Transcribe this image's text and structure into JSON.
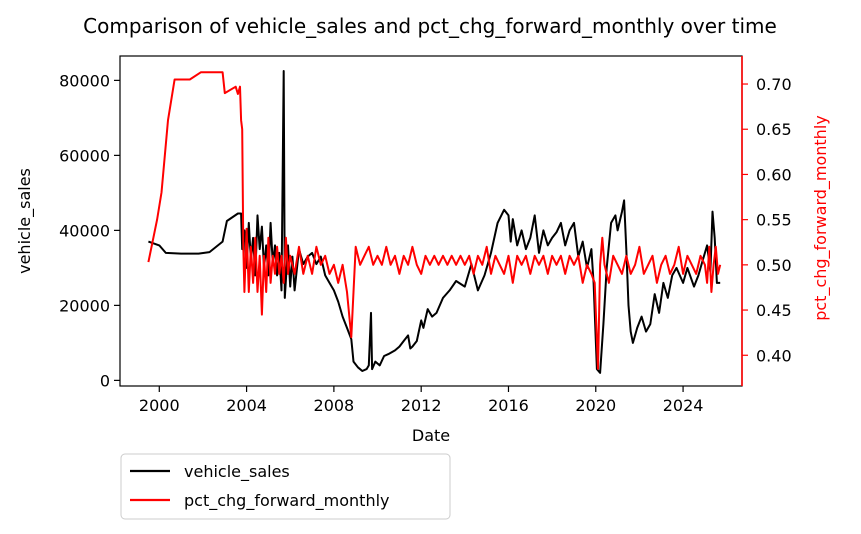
{
  "chart_data": {
    "type": "line",
    "title": "Comparison of vehicle_sales and pct_chg_forward_monthly over time",
    "xlabel": "Date",
    "ylabel_left": "vehicle_sales",
    "ylabel_right": "pct_chg_forward_monthly",
    "colors": {
      "left": "#000000",
      "right": "#ff0000"
    },
    "x_ticks": [
      "2000",
      "2004",
      "2008",
      "2012",
      "2016",
      "2020",
      "2024"
    ],
    "xlim": [
      1998.2,
      2026.7
    ],
    "ylim_left": [
      -1500,
      86500
    ],
    "ylim_right": [
      0.366,
      0.731
    ],
    "yticks_left": [
      0,
      20000,
      40000,
      60000,
      80000
    ],
    "yticks_right": [
      0.4,
      0.45,
      0.5,
      0.55,
      0.6,
      0.65,
      0.7
    ],
    "legend": {
      "placement": "below-left",
      "entries": [
        "vehicle_sales",
        "pct_chg_forward_monthly"
      ]
    },
    "series": [
      {
        "name": "vehicle_sales",
        "axis": "left",
        "points": [
          [
            1999.5,
            37000
          ],
          [
            2000.0,
            36000
          ],
          [
            2000.3,
            34000
          ],
          [
            2001.0,
            33800
          ],
          [
            2001.8,
            33800
          ],
          [
            2002.3,
            34200
          ],
          [
            2002.9,
            37000
          ],
          [
            2003.1,
            42500
          ],
          [
            2003.6,
            44500
          ],
          [
            2003.75,
            44500
          ],
          [
            2003.8,
            35000
          ],
          [
            2003.9,
            40000
          ],
          [
            2004.0,
            30000
          ],
          [
            2004.1,
            42000
          ],
          [
            2004.2,
            32000
          ],
          [
            2004.3,
            38000
          ],
          [
            2004.4,
            28000
          ],
          [
            2004.5,
            44000
          ],
          [
            2004.6,
            35000
          ],
          [
            2004.7,
            41000
          ],
          [
            2004.8,
            30000
          ],
          [
            2004.9,
            36000
          ],
          [
            2005.0,
            28000
          ],
          [
            2005.1,
            42000
          ],
          [
            2005.2,
            31000
          ],
          [
            2005.3,
            36000
          ],
          [
            2005.4,
            28000
          ],
          [
            2005.5,
            34000
          ],
          [
            2005.6,
            24000
          ],
          [
            2005.7,
            82500
          ],
          [
            2005.75,
            22000
          ],
          [
            2005.9,
            36000
          ],
          [
            2006.0,
            25000
          ],
          [
            2006.1,
            33000
          ],
          [
            2006.2,
            24000
          ],
          [
            2006.4,
            35000
          ],
          [
            2006.6,
            31000
          ],
          [
            2006.8,
            33000
          ],
          [
            2007.0,
            34000
          ],
          [
            2007.2,
            31000
          ],
          [
            2007.4,
            33000
          ],
          [
            2007.6,
            28000
          ],
          [
            2007.8,
            26000
          ],
          [
            2008.0,
            24000
          ],
          [
            2008.2,
            21000
          ],
          [
            2008.4,
            17000
          ],
          [
            2008.6,
            14000
          ],
          [
            2008.8,
            11000
          ],
          [
            2008.9,
            5000
          ],
          [
            2009.1,
            3500
          ],
          [
            2009.3,
            2500
          ],
          [
            2009.5,
            3000
          ],
          [
            2009.6,
            4000
          ],
          [
            2009.7,
            18000
          ],
          [
            2009.75,
            3000
          ],
          [
            2009.9,
            5000
          ],
          [
            2010.1,
            4000
          ],
          [
            2010.3,
            6500
          ],
          [
            2010.5,
            7000
          ],
          [
            2010.8,
            8000
          ],
          [
            2011.0,
            9000
          ],
          [
            2011.2,
            10500
          ],
          [
            2011.4,
            12000
          ],
          [
            2011.5,
            8500
          ],
          [
            2011.6,
            9000
          ],
          [
            2011.8,
            10500
          ],
          [
            2012.0,
            16000
          ],
          [
            2012.1,
            14000
          ],
          [
            2012.3,
            19000
          ],
          [
            2012.5,
            17000
          ],
          [
            2012.7,
            18000
          ],
          [
            2013.0,
            22000
          ],
          [
            2013.3,
            24000
          ],
          [
            2013.6,
            26500
          ],
          [
            2014.0,
            25000
          ],
          [
            2014.3,
            31000
          ],
          [
            2014.6,
            24000
          ],
          [
            2014.9,
            28000
          ],
          [
            2015.2,
            34000
          ],
          [
            2015.5,
            42000
          ],
          [
            2015.8,
            45500
          ],
          [
            2016.0,
            44000
          ],
          [
            2016.1,
            37000
          ],
          [
            2016.2,
            43000
          ],
          [
            2016.4,
            36000
          ],
          [
            2016.6,
            40000
          ],
          [
            2016.8,
            35000
          ],
          [
            2017.0,
            38000
          ],
          [
            2017.2,
            44000
          ],
          [
            2017.4,
            34000
          ],
          [
            2017.6,
            40000
          ],
          [
            2017.8,
            36000
          ],
          [
            2018.0,
            38000
          ],
          [
            2018.2,
            39500
          ],
          [
            2018.4,
            42000
          ],
          [
            2018.6,
            36000
          ],
          [
            2018.8,
            40000
          ],
          [
            2019.0,
            42000
          ],
          [
            2019.2,
            33000
          ],
          [
            2019.4,
            37000
          ],
          [
            2019.6,
            30000
          ],
          [
            2019.8,
            35000
          ],
          [
            2019.9,
            26000
          ],
          [
            2020.05,
            3000
          ],
          [
            2020.2,
            2000
          ],
          [
            2020.35,
            15000
          ],
          [
            2020.5,
            30000
          ],
          [
            2020.7,
            42000
          ],
          [
            2020.9,
            44000
          ],
          [
            2021.0,
            40000
          ],
          [
            2021.2,
            45000
          ],
          [
            2021.3,
            48000
          ],
          [
            2021.4,
            35000
          ],
          [
            2021.5,
            20000
          ],
          [
            2021.6,
            13000
          ],
          [
            2021.7,
            10000
          ],
          [
            2021.9,
            14000
          ],
          [
            2022.1,
            17000
          ],
          [
            2022.3,
            13000
          ],
          [
            2022.5,
            15000
          ],
          [
            2022.7,
            23000
          ],
          [
            2022.9,
            18000
          ],
          [
            2023.1,
            26000
          ],
          [
            2023.3,
            22000
          ],
          [
            2023.5,
            28000
          ],
          [
            2023.7,
            30000
          ],
          [
            2024.0,
            26000
          ],
          [
            2024.2,
            30000
          ],
          [
            2024.5,
            25000
          ],
          [
            2024.7,
            28000
          ],
          [
            2024.9,
            32000
          ],
          [
            2025.1,
            36000
          ],
          [
            2025.25,
            29000
          ],
          [
            2025.35,
            45000
          ],
          [
            2025.45,
            38000
          ],
          [
            2025.55,
            26000
          ],
          [
            2025.7,
            26000
          ]
        ]
      },
      {
        "name": "pct_chg_forward_monthly",
        "axis": "right",
        "points": [
          [
            1999.5,
            0.503
          ],
          [
            1999.9,
            0.55
          ],
          [
            2000.1,
            0.58
          ],
          [
            2000.4,
            0.66
          ],
          [
            2000.7,
            0.705
          ],
          [
            2001.4,
            0.705
          ],
          [
            2001.9,
            0.713
          ],
          [
            2002.9,
            0.713
          ],
          [
            2003.0,
            0.69
          ],
          [
            2003.5,
            0.697
          ],
          [
            2003.6,
            0.689
          ],
          [
            2003.7,
            0.697
          ],
          [
            2003.75,
            0.66
          ],
          [
            2003.8,
            0.65
          ],
          [
            2003.85,
            0.52
          ],
          [
            2003.9,
            0.47
          ],
          [
            2004.0,
            0.54
          ],
          [
            2004.1,
            0.47
          ],
          [
            2004.2,
            0.52
          ],
          [
            2004.3,
            0.48
          ],
          [
            2004.4,
            0.53
          ],
          [
            2004.5,
            0.47
          ],
          [
            2004.6,
            0.51
          ],
          [
            2004.7,
            0.445
          ],
          [
            2004.8,
            0.51
          ],
          [
            2004.9,
            0.47
          ],
          [
            2005.0,
            0.53
          ],
          [
            2005.1,
            0.48
          ],
          [
            2005.2,
            0.51
          ],
          [
            2005.3,
            0.49
          ],
          [
            2005.4,
            0.52
          ],
          [
            2005.5,
            0.49
          ],
          [
            2005.6,
            0.51
          ],
          [
            2005.7,
            0.48
          ],
          [
            2005.8,
            0.53
          ],
          [
            2005.9,
            0.49
          ],
          [
            2006.0,
            0.51
          ],
          [
            2006.2,
            0.49
          ],
          [
            2006.4,
            0.52
          ],
          [
            2006.6,
            0.49
          ],
          [
            2006.8,
            0.51
          ],
          [
            2007.0,
            0.49
          ],
          [
            2007.2,
            0.52
          ],
          [
            2007.4,
            0.5
          ],
          [
            2007.6,
            0.51
          ],
          [
            2007.8,
            0.49
          ],
          [
            2008.0,
            0.5
          ],
          [
            2008.2,
            0.48
          ],
          [
            2008.4,
            0.5
          ],
          [
            2008.6,
            0.47
          ],
          [
            2008.8,
            0.42
          ],
          [
            2008.9,
            0.47
          ],
          [
            2009.0,
            0.52
          ],
          [
            2009.2,
            0.5
          ],
          [
            2009.4,
            0.51
          ],
          [
            2009.6,
            0.52
          ],
          [
            2009.8,
            0.5
          ],
          [
            2010.0,
            0.51
          ],
          [
            2010.2,
            0.5
          ],
          [
            2010.4,
            0.52
          ],
          [
            2010.6,
            0.5
          ],
          [
            2010.8,
            0.51
          ],
          [
            2011.0,
            0.49
          ],
          [
            2011.2,
            0.51
          ],
          [
            2011.4,
            0.5
          ],
          [
            2011.6,
            0.52
          ],
          [
            2011.8,
            0.5
          ],
          [
            2012.0,
            0.49
          ],
          [
            2012.2,
            0.51
          ],
          [
            2012.4,
            0.5
          ],
          [
            2012.6,
            0.51
          ],
          [
            2012.8,
            0.5
          ],
          [
            2013.0,
            0.51
          ],
          [
            2013.2,
            0.5
          ],
          [
            2013.4,
            0.51
          ],
          [
            2013.6,
            0.5
          ],
          [
            2013.8,
            0.51
          ],
          [
            2014.0,
            0.5
          ],
          [
            2014.2,
            0.51
          ],
          [
            2014.4,
            0.49
          ],
          [
            2014.6,
            0.51
          ],
          [
            2014.8,
            0.5
          ],
          [
            2015.0,
            0.52
          ],
          [
            2015.2,
            0.49
          ],
          [
            2015.4,
            0.51
          ],
          [
            2015.6,
            0.5
          ],
          [
            2015.8,
            0.49
          ],
          [
            2016.0,
            0.51
          ],
          [
            2016.2,
            0.48
          ],
          [
            2016.4,
            0.51
          ],
          [
            2016.6,
            0.5
          ],
          [
            2016.8,
            0.51
          ],
          [
            2017.0,
            0.49
          ],
          [
            2017.2,
            0.51
          ],
          [
            2017.4,
            0.5
          ],
          [
            2017.6,
            0.51
          ],
          [
            2017.8,
            0.49
          ],
          [
            2018.0,
            0.51
          ],
          [
            2018.2,
            0.5
          ],
          [
            2018.4,
            0.51
          ],
          [
            2018.6,
            0.49
          ],
          [
            2018.8,
            0.51
          ],
          [
            2019.0,
            0.5
          ],
          [
            2019.2,
            0.51
          ],
          [
            2019.4,
            0.48
          ],
          [
            2019.6,
            0.5
          ],
          [
            2019.8,
            0.49
          ],
          [
            2019.95,
            0.48
          ],
          [
            2020.1,
            0.385
          ],
          [
            2020.2,
            0.5
          ],
          [
            2020.3,
            0.53
          ],
          [
            2020.4,
            0.5
          ],
          [
            2020.6,
            0.48
          ],
          [
            2020.8,
            0.51
          ],
          [
            2021.0,
            0.5
          ],
          [
            2021.2,
            0.49
          ],
          [
            2021.4,
            0.51
          ],
          [
            2021.6,
            0.49
          ],
          [
            2021.8,
            0.5
          ],
          [
            2022.0,
            0.52
          ],
          [
            2022.2,
            0.49
          ],
          [
            2022.4,
            0.5
          ],
          [
            2022.6,
            0.51
          ],
          [
            2022.8,
            0.48
          ],
          [
            2023.0,
            0.5
          ],
          [
            2023.2,
            0.51
          ],
          [
            2023.4,
            0.49
          ],
          [
            2023.6,
            0.5
          ],
          [
            2023.8,
            0.52
          ],
          [
            2024.0,
            0.49
          ],
          [
            2024.2,
            0.51
          ],
          [
            2024.4,
            0.5
          ],
          [
            2024.6,
            0.49
          ],
          [
            2024.8,
            0.51
          ],
          [
            2025.0,
            0.5
          ],
          [
            2025.1,
            0.48
          ],
          [
            2025.2,
            0.52
          ],
          [
            2025.3,
            0.47
          ],
          [
            2025.4,
            0.5
          ],
          [
            2025.5,
            0.52
          ],
          [
            2025.6,
            0.49
          ],
          [
            2025.7,
            0.5
          ]
        ]
      }
    ]
  }
}
